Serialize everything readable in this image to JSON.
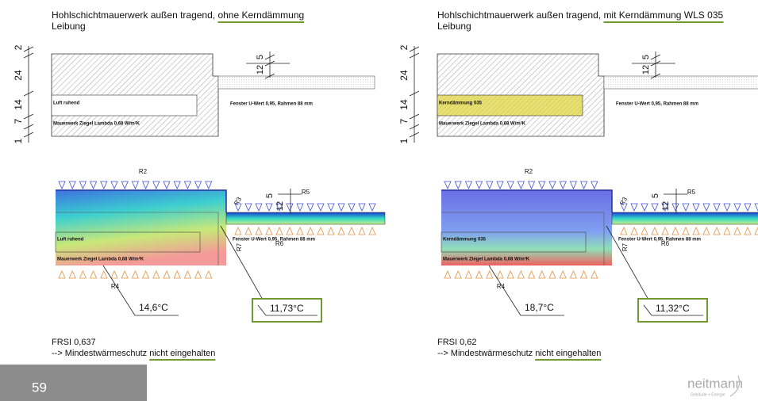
{
  "page_number": "59",
  "logo": {
    "name": "neitmann",
    "tagline": "Gebäude + Energie"
  },
  "panels": [
    {
      "title": "Hohlschichtmauerwerk außen tragend, ",
      "title_emphasis": "ohne Kerndämmung",
      "subtitle": "Leibung",
      "section": {
        "dimensions_left": [
          "2",
          "24",
          "14",
          "7",
          "1"
        ],
        "dimensions_reveal": [
          "5",
          "12"
        ],
        "layer_label": "Luft ruhend",
        "window_label": "Fenster U-Wert 0,95, Rahmen 88 mm",
        "wall_label": "Mauerwerk Ziegel Lambda 0,68 W/m²K"
      },
      "thermal": {
        "boundaries": [
          "R2",
          "R3",
          "R4",
          "R5",
          "R6",
          "R7"
        ],
        "dimensions_reveal": [
          "5",
          "12"
        ],
        "layer_label": "Luft ruhend",
        "window_label": "Fenster U-Wert 0,95, Rahmen 88 mm",
        "wall_label": "Mauerwerk Ziegel Lambda 0,68 W/m²K"
      },
      "temperatures": {
        "surface": "14,6°C",
        "corner": "11,73°C"
      },
      "frsi": "FRSI 0,637",
      "conclusion": "--> Mindestwärmeschutz ",
      "conclusion_emphasis": "nicht eingehalten"
    },
    {
      "title": "Hohlschichtmauerwerk außen tragend, ",
      "title_emphasis": "mit Kerndämmung WLS 035",
      "subtitle": "Leibung",
      "section": {
        "dimensions_left": [
          "2",
          "24",
          "14",
          "7",
          "1"
        ],
        "dimensions_reveal": [
          "5",
          "12"
        ],
        "layer_label": "Kerndämmung 035",
        "window_label": "Fenster U-Wert 0,95, Rahmen 88 mm",
        "wall_label": "Mauerwerk Ziegel Lambda 0,68 W/m²K"
      },
      "thermal": {
        "boundaries": [
          "R2",
          "R3",
          "R4",
          "R5",
          "R6",
          "R7"
        ],
        "dimensions_reveal": [
          "5",
          "12"
        ],
        "layer_label": "Kerndämmung 035",
        "window_label": "Fenster U-Wert 0,95, Rahmen 88 mm",
        "wall_label": "Mauerwerk Ziegel Lambda 0,68 W/m²K"
      },
      "temperatures": {
        "surface": "18,7°C",
        "corner": "11,32°C"
      },
      "frsi": "FRSI 0,62",
      "conclusion": "--> Mindestwärmeschutz ",
      "conclusion_emphasis": "nicht eingehalten"
    }
  ]
}
